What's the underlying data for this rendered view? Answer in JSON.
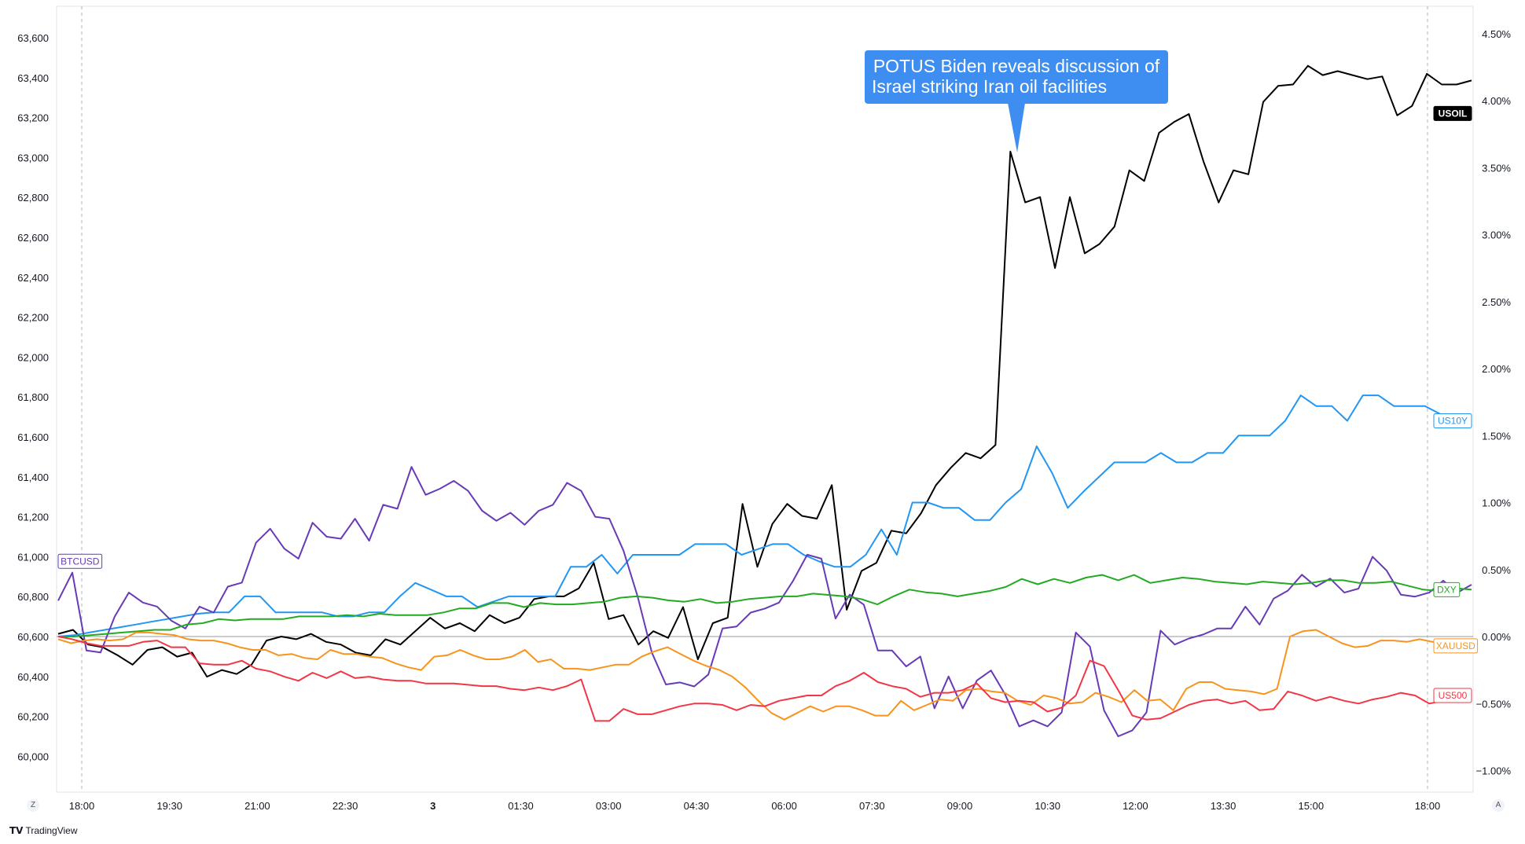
{
  "chart_data": {
    "type": "line",
    "x_ticks": [
      "18:00",
      "19:30",
      "21:00",
      "22:30",
      "3",
      "01:30",
      "03:00",
      "04:30",
      "06:00",
      "07:30",
      "09:00",
      "10:30",
      "12:00",
      "13:30",
      "15:00",
      "18:00"
    ],
    "left_axis": {
      "ticks": [
        "63,600",
        "63,400",
        "63,200",
        "63,000",
        "62,800",
        "62,600",
        "62,400",
        "62,200",
        "62,000",
        "61,800",
        "61,600",
        "61,400",
        "61,200",
        "61,000",
        "60,800",
        "60,600",
        "60,400",
        "60,200",
        "60,000"
      ],
      "ylim": [
        59900,
        63700
      ]
    },
    "right_axis": {
      "ticks": [
        "4.50%",
        "4.00%",
        "3.50%",
        "3.00%",
        "2.50%",
        "2.00%",
        "1.50%",
        "1.00%",
        "0.50%",
        "0.00%",
        "−0.50%",
        "−1.00%"
      ],
      "ylim": [
        -1.1,
        4.6
      ],
      "unit": "%"
    },
    "callout": {
      "text_line1": "POTUS Biden reveals discussion of",
      "text_line2": "Israel striking Iran oil facilities",
      "color": "#3d8ef0"
    },
    "series": [
      {
        "name": "USOIL",
        "color": "#000000",
        "axis": "right",
        "values": [
          0.02,
          0.05,
          -0.06,
          -0.08,
          -0.14,
          -0.21,
          -0.1,
          -0.08,
          -0.15,
          -0.12,
          -0.3,
          -0.25,
          -0.28,
          -0.21,
          -0.03,
          0.0,
          -0.02,
          0.02,
          -0.04,
          -0.06,
          -0.12,
          -0.14,
          -0.02,
          -0.06,
          0.04,
          0.14,
          0.06,
          0.1,
          0.04,
          0.16,
          0.1,
          0.14,
          0.28,
          0.3,
          0.3,
          0.36,
          0.55,
          0.13,
          0.16,
          -0.06,
          0.04,
          -0.01,
          0.22,
          -0.17,
          0.1,
          0.14,
          0.99,
          0.52,
          0.84,
          0.99,
          0.9,
          0.88,
          1.13,
          0.2,
          0.49,
          0.55,
          0.79,
          0.77,
          0.92,
          1.13,
          1.26,
          1.37,
          1.33,
          1.43,
          3.62,
          3.24,
          3.28,
          2.75,
          3.28,
          2.86,
          2.93,
          3.06,
          3.48,
          3.4,
          3.76,
          3.84,
          3.9,
          3.54,
          3.24,
          3.48,
          3.45,
          3.99,
          4.11,
          4.12,
          4.26,
          4.19,
          4.22,
          4.19,
          4.16,
          4.18,
          3.89,
          3.96,
          4.2,
          4.12,
          4.12,
          4.15
        ]
      },
      {
        "name": "US10Y",
        "color": "#2196f3",
        "axis": "right",
        "values": [
          0.0,
          0.01,
          0.03,
          0.05,
          0.07,
          0.09,
          0.11,
          0.13,
          0.15,
          0.17,
          0.18,
          0.18,
          0.3,
          0.3,
          0.18,
          0.18,
          0.18,
          0.18,
          0.15,
          0.15,
          0.18,
          0.18,
          0.3,
          0.4,
          0.35,
          0.3,
          0.3,
          0.22,
          0.26,
          0.3,
          0.3,
          0.3,
          0.3,
          0.52,
          0.52,
          0.61,
          0.47,
          0.61,
          0.61,
          0.61,
          0.61,
          0.69,
          0.69,
          0.69,
          0.61,
          0.65,
          0.69,
          0.69,
          0.61,
          0.56,
          0.52,
          0.52,
          0.61,
          0.8,
          0.61,
          1.0,
          1.0,
          0.96,
          0.96,
          0.87,
          0.87,
          1.0,
          1.1,
          1.42,
          1.22,
          0.96,
          1.08,
          1.19,
          1.3,
          1.3,
          1.3,
          1.37,
          1.3,
          1.3,
          1.37,
          1.37,
          1.5,
          1.5,
          1.5,
          1.61,
          1.8,
          1.72,
          1.72,
          1.61,
          1.8,
          1.8,
          1.72,
          1.72,
          1.72,
          1.66,
          1.66,
          1.61
        ]
      },
      {
        "name": "BTCUSD",
        "color": "#673ab7",
        "axis": "left",
        "values": [
          60780,
          60920,
          60530,
          60520,
          60700,
          60820,
          60770,
          60750,
          60680,
          60640,
          60750,
          60720,
          60850,
          60870,
          61070,
          61140,
          61040,
          60990,
          61170,
          61100,
          61090,
          61190,
          61080,
          61260,
          61240,
          61450,
          61310,
          61340,
          61380,
          61330,
          61230,
          61180,
          61220,
          61160,
          61230,
          61260,
          61370,
          61330,
          61200,
          61190,
          61030,
          60800,
          60520,
          60360,
          60370,
          60350,
          60410,
          60640,
          60650,
          60720,
          60740,
          60770,
          60880,
          61010,
          60990,
          60690,
          60810,
          60760,
          60530,
          60530,
          60450,
          60500,
          60240,
          60400,
          60240,
          60380,
          60430,
          60310,
          60150,
          60180,
          60150,
          60220,
          60620,
          60550,
          60230,
          60100,
          60130,
          60220,
          60630,
          60560,
          60590,
          60610,
          60640,
          60640,
          60750,
          60660,
          60790,
          60830,
          60910,
          60850,
          60890,
          60820,
          60840,
          61000,
          60930,
          60810,
          60800,
          60820,
          60880,
          60820,
          60860
        ]
      },
      {
        "name": "DXY",
        "color": "#22ab22",
        "axis": "right",
        "values": [
          0.0,
          0.0,
          0.01,
          0.02,
          0.03,
          0.04,
          0.05,
          0.05,
          0.09,
          0.1,
          0.13,
          0.12,
          0.13,
          0.13,
          0.13,
          0.15,
          0.15,
          0.15,
          0.16,
          0.15,
          0.17,
          0.16,
          0.16,
          0.16,
          0.18,
          0.21,
          0.21,
          0.25,
          0.25,
          0.22,
          0.25,
          0.24,
          0.24,
          0.25,
          0.26,
          0.29,
          0.3,
          0.29,
          0.27,
          0.26,
          0.28,
          0.25,
          0.26,
          0.28,
          0.29,
          0.3,
          0.3,
          0.32,
          0.31,
          0.3,
          0.28,
          0.24,
          0.3,
          0.35,
          0.33,
          0.32,
          0.3,
          0.32,
          0.34,
          0.37,
          0.43,
          0.39,
          0.43,
          0.4,
          0.44,
          0.46,
          0.42,
          0.46,
          0.4,
          0.42,
          0.44,
          0.43,
          0.41,
          0.4,
          0.39,
          0.41,
          0.4,
          0.39,
          0.4,
          0.42,
          0.42,
          0.4,
          0.4,
          0.41,
          0.38,
          0.35,
          0.34,
          0.36,
          0.35
        ]
      },
      {
        "name": "XAUUSD",
        "color": "#f7941d",
        "axis": "right",
        "values": [
          -0.02,
          -0.05,
          -0.03,
          -0.02,
          -0.03,
          -0.02,
          0.03,
          0.03,
          0.02,
          0.01,
          -0.02,
          -0.03,
          -0.03,
          -0.05,
          -0.08,
          -0.1,
          -0.1,
          -0.14,
          -0.13,
          -0.16,
          -0.17,
          -0.1,
          -0.13,
          -0.13,
          -0.15,
          -0.16,
          -0.2,
          -0.23,
          -0.25,
          -0.15,
          -0.14,
          -0.1,
          -0.14,
          -0.17,
          -0.17,
          -0.15,
          -0.1,
          -0.19,
          -0.17,
          -0.24,
          -0.24,
          -0.25,
          -0.23,
          -0.21,
          -0.21,
          -0.15,
          -0.11,
          -0.08,
          -0.13,
          -0.18,
          -0.22,
          -0.25,
          -0.3,
          -0.38,
          -0.48,
          -0.57,
          -0.62,
          -0.57,
          -0.52,
          -0.56,
          -0.52,
          -0.52,
          -0.55,
          -0.59,
          -0.59,
          -0.48,
          -0.55,
          -0.51,
          -0.47,
          -0.48,
          -0.4,
          -0.39,
          -0.41,
          -0.42,
          -0.48,
          -0.51,
          -0.44,
          -0.46,
          -0.5,
          -0.49,
          -0.42,
          -0.45,
          -0.49,
          -0.4,
          -0.48,
          -0.47,
          -0.55,
          -0.39,
          -0.34,
          -0.34,
          -0.39,
          -0.4,
          -0.41,
          -0.43,
          -0.39,
          0.0,
          0.04,
          0.05,
          0.0,
          -0.05,
          -0.08,
          -0.07,
          -0.03,
          -0.03,
          -0.04,
          -0.02,
          -0.04,
          -0.04,
          -0.05,
          -0.07
        ]
      },
      {
        "name": "US500",
        "color": "#f23645",
        "axis": "right",
        "values": [
          0.0,
          -0.02,
          -0.05,
          -0.07,
          -0.07,
          -0.07,
          -0.04,
          -0.03,
          -0.08,
          -0.08,
          -0.2,
          -0.21,
          -0.21,
          -0.18,
          -0.24,
          -0.26,
          -0.3,
          -0.33,
          -0.27,
          -0.31,
          -0.26,
          -0.31,
          -0.3,
          -0.32,
          -0.33,
          -0.33,
          -0.35,
          -0.35,
          -0.35,
          -0.36,
          -0.37,
          -0.37,
          -0.39,
          -0.4,
          -0.38,
          -0.4,
          -0.37,
          -0.32,
          -0.63,
          -0.63,
          -0.54,
          -0.58,
          -0.58,
          -0.55,
          -0.52,
          -0.5,
          -0.5,
          -0.51,
          -0.55,
          -0.51,
          -0.52,
          -0.48,
          -0.46,
          -0.44,
          -0.44,
          -0.37,
          -0.33,
          -0.27,
          -0.34,
          -0.37,
          -0.39,
          -0.45,
          -0.42,
          -0.42,
          -0.4,
          -0.35,
          -0.46,
          -0.49,
          -0.48,
          -0.49,
          -0.56,
          -0.53,
          -0.44,
          -0.18,
          -0.22,
          -0.4,
          -0.59,
          -0.62,
          -0.61,
          -0.56,
          -0.51,
          -0.48,
          -0.47,
          -0.5,
          -0.48,
          -0.55,
          -0.54,
          -0.41,
          -0.44,
          -0.48,
          -0.45,
          -0.48,
          -0.5,
          -0.47,
          -0.45,
          -0.42,
          -0.44,
          -0.5,
          -0.48,
          -0.47,
          -0.44
        ]
      }
    ]
  },
  "footer": {
    "brand": "TradingView"
  },
  "axis_corner": {
    "left": "Z",
    "right": "A"
  }
}
